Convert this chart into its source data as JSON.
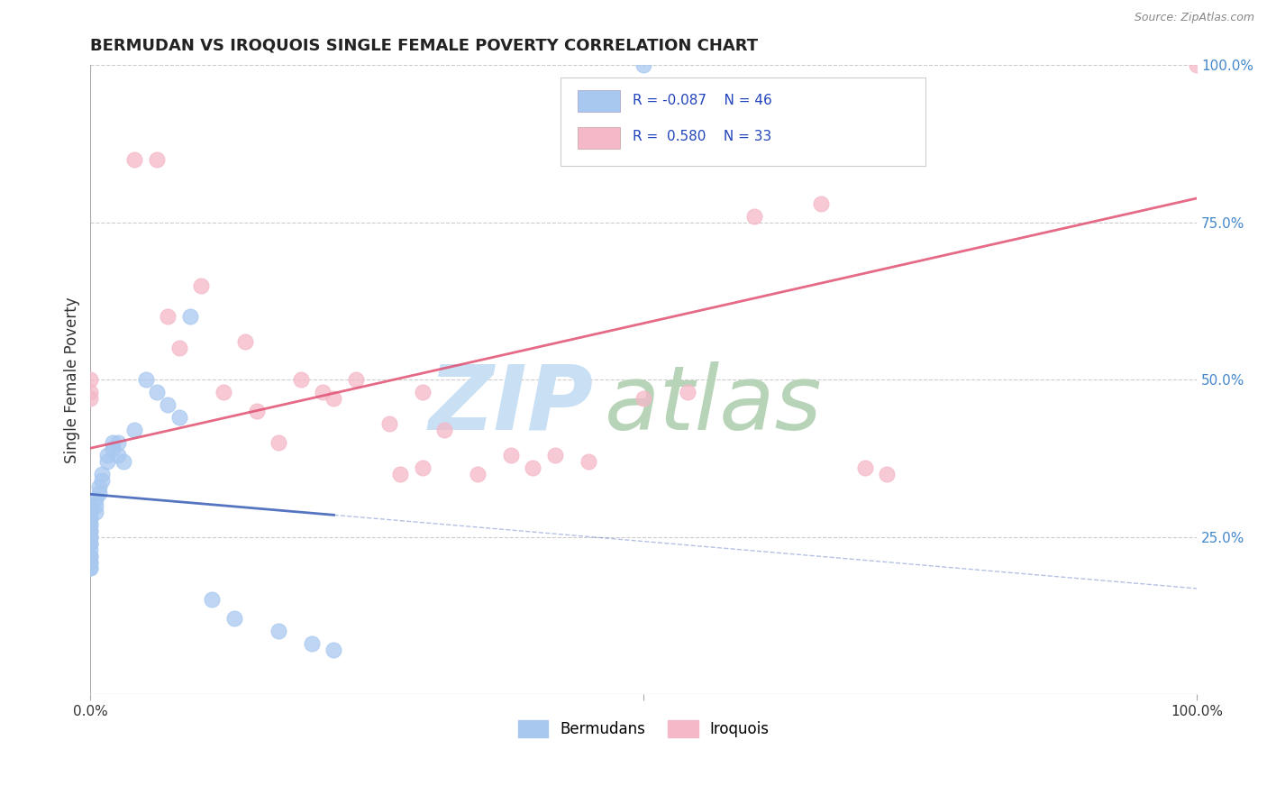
{
  "title": "BERMUDAN VS IROQUOIS SINGLE FEMALE POVERTY CORRELATION CHART",
  "source": "Source: ZipAtlas.com",
  "ylabel": "Single Female Poverty",
  "legend_r_blue": "-0.087",
  "legend_n_blue": "46",
  "legend_r_pink": "0.580",
  "legend_n_pink": "33",
  "blue_color": "#a8c8f0",
  "blue_edge_color": "#7aaad0",
  "pink_color": "#f4b8c8",
  "pink_edge_color": "#e890a8",
  "blue_line_color": "#4466bb",
  "pink_line_color": "#e05070",
  "watermark_zip_color": "#c8dff4",
  "watermark_atlas_color": "#b8d4b8",
  "background_color": "#ffffff",
  "grid_color": "#cccccc",
  "right_tick_color": "#4488cc",
  "title_color": "#222222",
  "source_color": "#888888",
  "ylabel_color": "#333333",
  "blue_points_x": [
    0.0,
    0.0,
    0.0,
    0.0,
    0.0,
    0.0,
    0.0,
    0.0,
    0.0,
    0.0,
    0.0,
    0.0,
    0.0,
    0.0,
    0.0,
    0.0,
    0.0,
    0.0,
    0.0,
    0.0,
    0.005,
    0.005,
    0.005,
    0.008,
    0.008,
    0.01,
    0.01,
    0.015,
    0.015,
    0.02,
    0.02,
    0.025,
    0.025,
    0.03,
    0.04,
    0.05,
    0.06,
    0.07,
    0.08,
    0.09,
    0.11,
    0.13,
    0.17,
    0.2,
    0.22,
    0.5
  ],
  "blue_points_y": [
    0.3,
    0.29,
    0.28,
    0.28,
    0.27,
    0.27,
    0.26,
    0.26,
    0.25,
    0.25,
    0.24,
    0.24,
    0.23,
    0.22,
    0.22,
    0.21,
    0.21,
    0.2,
    0.2,
    0.3,
    0.31,
    0.3,
    0.29,
    0.33,
    0.32,
    0.35,
    0.34,
    0.38,
    0.37,
    0.4,
    0.39,
    0.4,
    0.38,
    0.37,
    0.42,
    0.5,
    0.48,
    0.46,
    0.44,
    0.6,
    0.15,
    0.12,
    0.1,
    0.08,
    0.07,
    1.0
  ],
  "pink_points_x": [
    0.04,
    0.06,
    0.07,
    0.08,
    0.1,
    0.12,
    0.14,
    0.15,
    0.17,
    0.19,
    0.21,
    0.22,
    0.24,
    0.27,
    0.28,
    0.3,
    0.32,
    0.35,
    0.38,
    0.4,
    0.42,
    0.45,
    0.5,
    0.54,
    0.6,
    0.66,
    0.7,
    0.72,
    0.0,
    0.0,
    0.0,
    0.3,
    1.0
  ],
  "pink_points_y": [
    0.85,
    0.85,
    0.6,
    0.55,
    0.65,
    0.48,
    0.56,
    0.45,
    0.4,
    0.5,
    0.48,
    0.47,
    0.5,
    0.43,
    0.35,
    0.36,
    0.42,
    0.35,
    0.38,
    0.36,
    0.38,
    0.37,
    0.47,
    0.48,
    0.76,
    0.78,
    0.36,
    0.35,
    0.5,
    0.48,
    0.47,
    0.48,
    1.0
  ]
}
